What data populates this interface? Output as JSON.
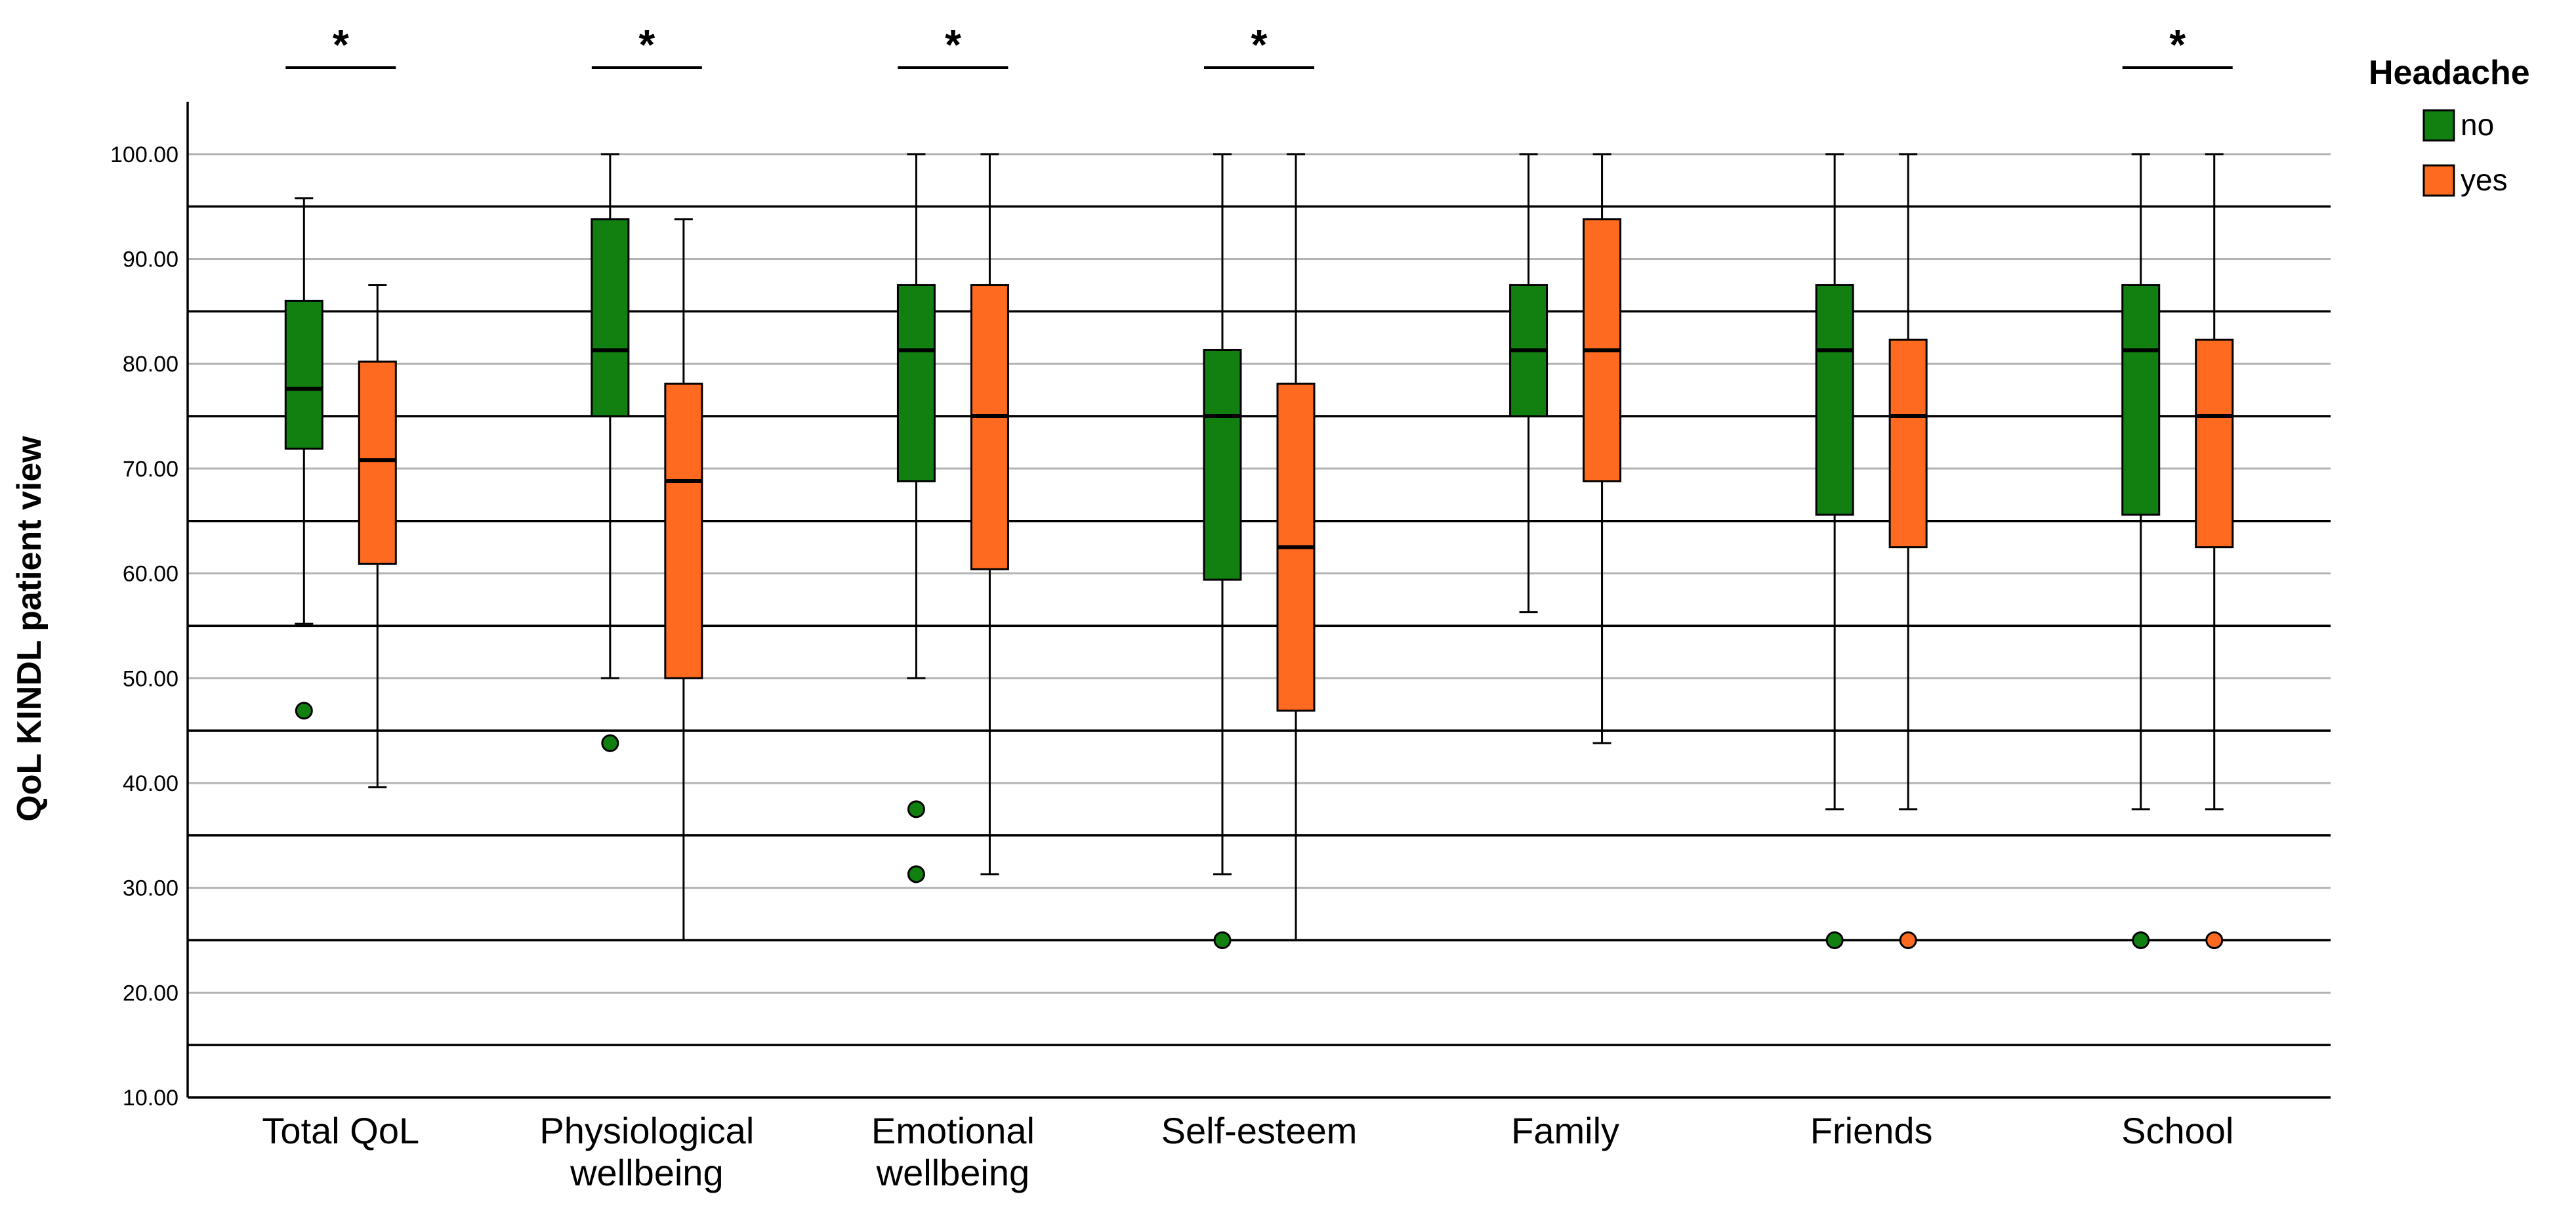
{
  "chart_data": {
    "type": "boxplot",
    "ylabel": "QoL KINDL patient view",
    "ylim": [
      10,
      105
    ],
    "yticks": [
      "10.00",
      "20.00",
      "30.00",
      "40.00",
      "50.00",
      "60.00",
      "70.00",
      "80.00",
      "90.00",
      "100.00"
    ],
    "ytick_values": [
      10,
      20,
      30,
      40,
      50,
      60,
      70,
      80,
      90,
      100
    ],
    "ref_lines": [
      15,
      25,
      35,
      45,
      55,
      65,
      75,
      85,
      95
    ],
    "legend": {
      "title": "Headache",
      "entries": [
        {
          "name": "no",
          "color": "#118011"
        },
        {
          "name": "yes",
          "color": "#FF6A21"
        }
      ]
    },
    "significance_marker": "*",
    "categories": [
      {
        "label_lines": [
          "Total QoL"
        ],
        "significant": true,
        "no": {
          "min": 55.2,
          "q1": 71.9,
          "median": 77.6,
          "q3": 86.0,
          "max": 95.8,
          "outliers": [
            46.9
          ]
        },
        "yes": {
          "min": 39.6,
          "q1": 60.9,
          "median": 70.8,
          "q3": 80.2,
          "max": 87.5,
          "outliers": []
        }
      },
      {
        "label_lines": [
          "Physiological",
          "wellbeing"
        ],
        "significant": true,
        "no": {
          "min": 50.0,
          "q1": 75.0,
          "median": 81.3,
          "q3": 93.8,
          "max": 100.0,
          "outliers": [
            43.8
          ]
        },
        "yes": {
          "min": 25.0,
          "q1": 50.0,
          "median": 68.8,
          "q3": 78.1,
          "max": 93.8,
          "outliers": []
        }
      },
      {
        "label_lines": [
          "Emotional",
          "wellbeing"
        ],
        "significant": true,
        "no": {
          "min": 50.0,
          "q1": 68.8,
          "median": 81.3,
          "q3": 87.5,
          "max": 100.0,
          "outliers": [
            37.5,
            31.3
          ]
        },
        "yes": {
          "min": 31.3,
          "q1": 60.4,
          "median": 75.0,
          "q3": 87.5,
          "max": 100.0,
          "outliers": []
        }
      },
      {
        "label_lines": [
          "Self-esteem"
        ],
        "significant": true,
        "no": {
          "min": 31.3,
          "q1": 59.4,
          "median": 75.0,
          "q3": 81.3,
          "max": 100.0,
          "outliers": [
            25.0
          ]
        },
        "yes": {
          "min": 25.0,
          "q1": 46.9,
          "median": 62.5,
          "q3": 78.1,
          "max": 100.0,
          "outliers": []
        }
      },
      {
        "label_lines": [
          "Family"
        ],
        "significant": false,
        "no": {
          "min": 56.3,
          "q1": 75.0,
          "median": 81.3,
          "q3": 87.5,
          "max": 100.0,
          "outliers": []
        },
        "yes": {
          "min": 43.8,
          "q1": 68.8,
          "median": 81.3,
          "q3": 93.8,
          "max": 100.0,
          "outliers": []
        }
      },
      {
        "label_lines": [
          "Friends"
        ],
        "significant": false,
        "no": {
          "min": 37.5,
          "q1": 65.6,
          "median": 81.3,
          "q3": 87.5,
          "max": 100.0,
          "outliers": [
            25.0
          ]
        },
        "yes": {
          "min": 37.5,
          "q1": 62.5,
          "median": 75.0,
          "q3": 82.3,
          "max": 100.0,
          "outliers": [
            25.0
          ]
        }
      },
      {
        "label_lines": [
          "School"
        ],
        "significant": true,
        "no": {
          "min": 37.5,
          "q1": 65.6,
          "median": 81.3,
          "q3": 87.5,
          "max": 100.0,
          "outliers": [
            25.0
          ]
        },
        "yes": {
          "min": 37.5,
          "q1": 62.5,
          "median": 75.0,
          "q3": 82.3,
          "max": 100.0,
          "outliers": [
            25.0
          ]
        }
      }
    ]
  }
}
